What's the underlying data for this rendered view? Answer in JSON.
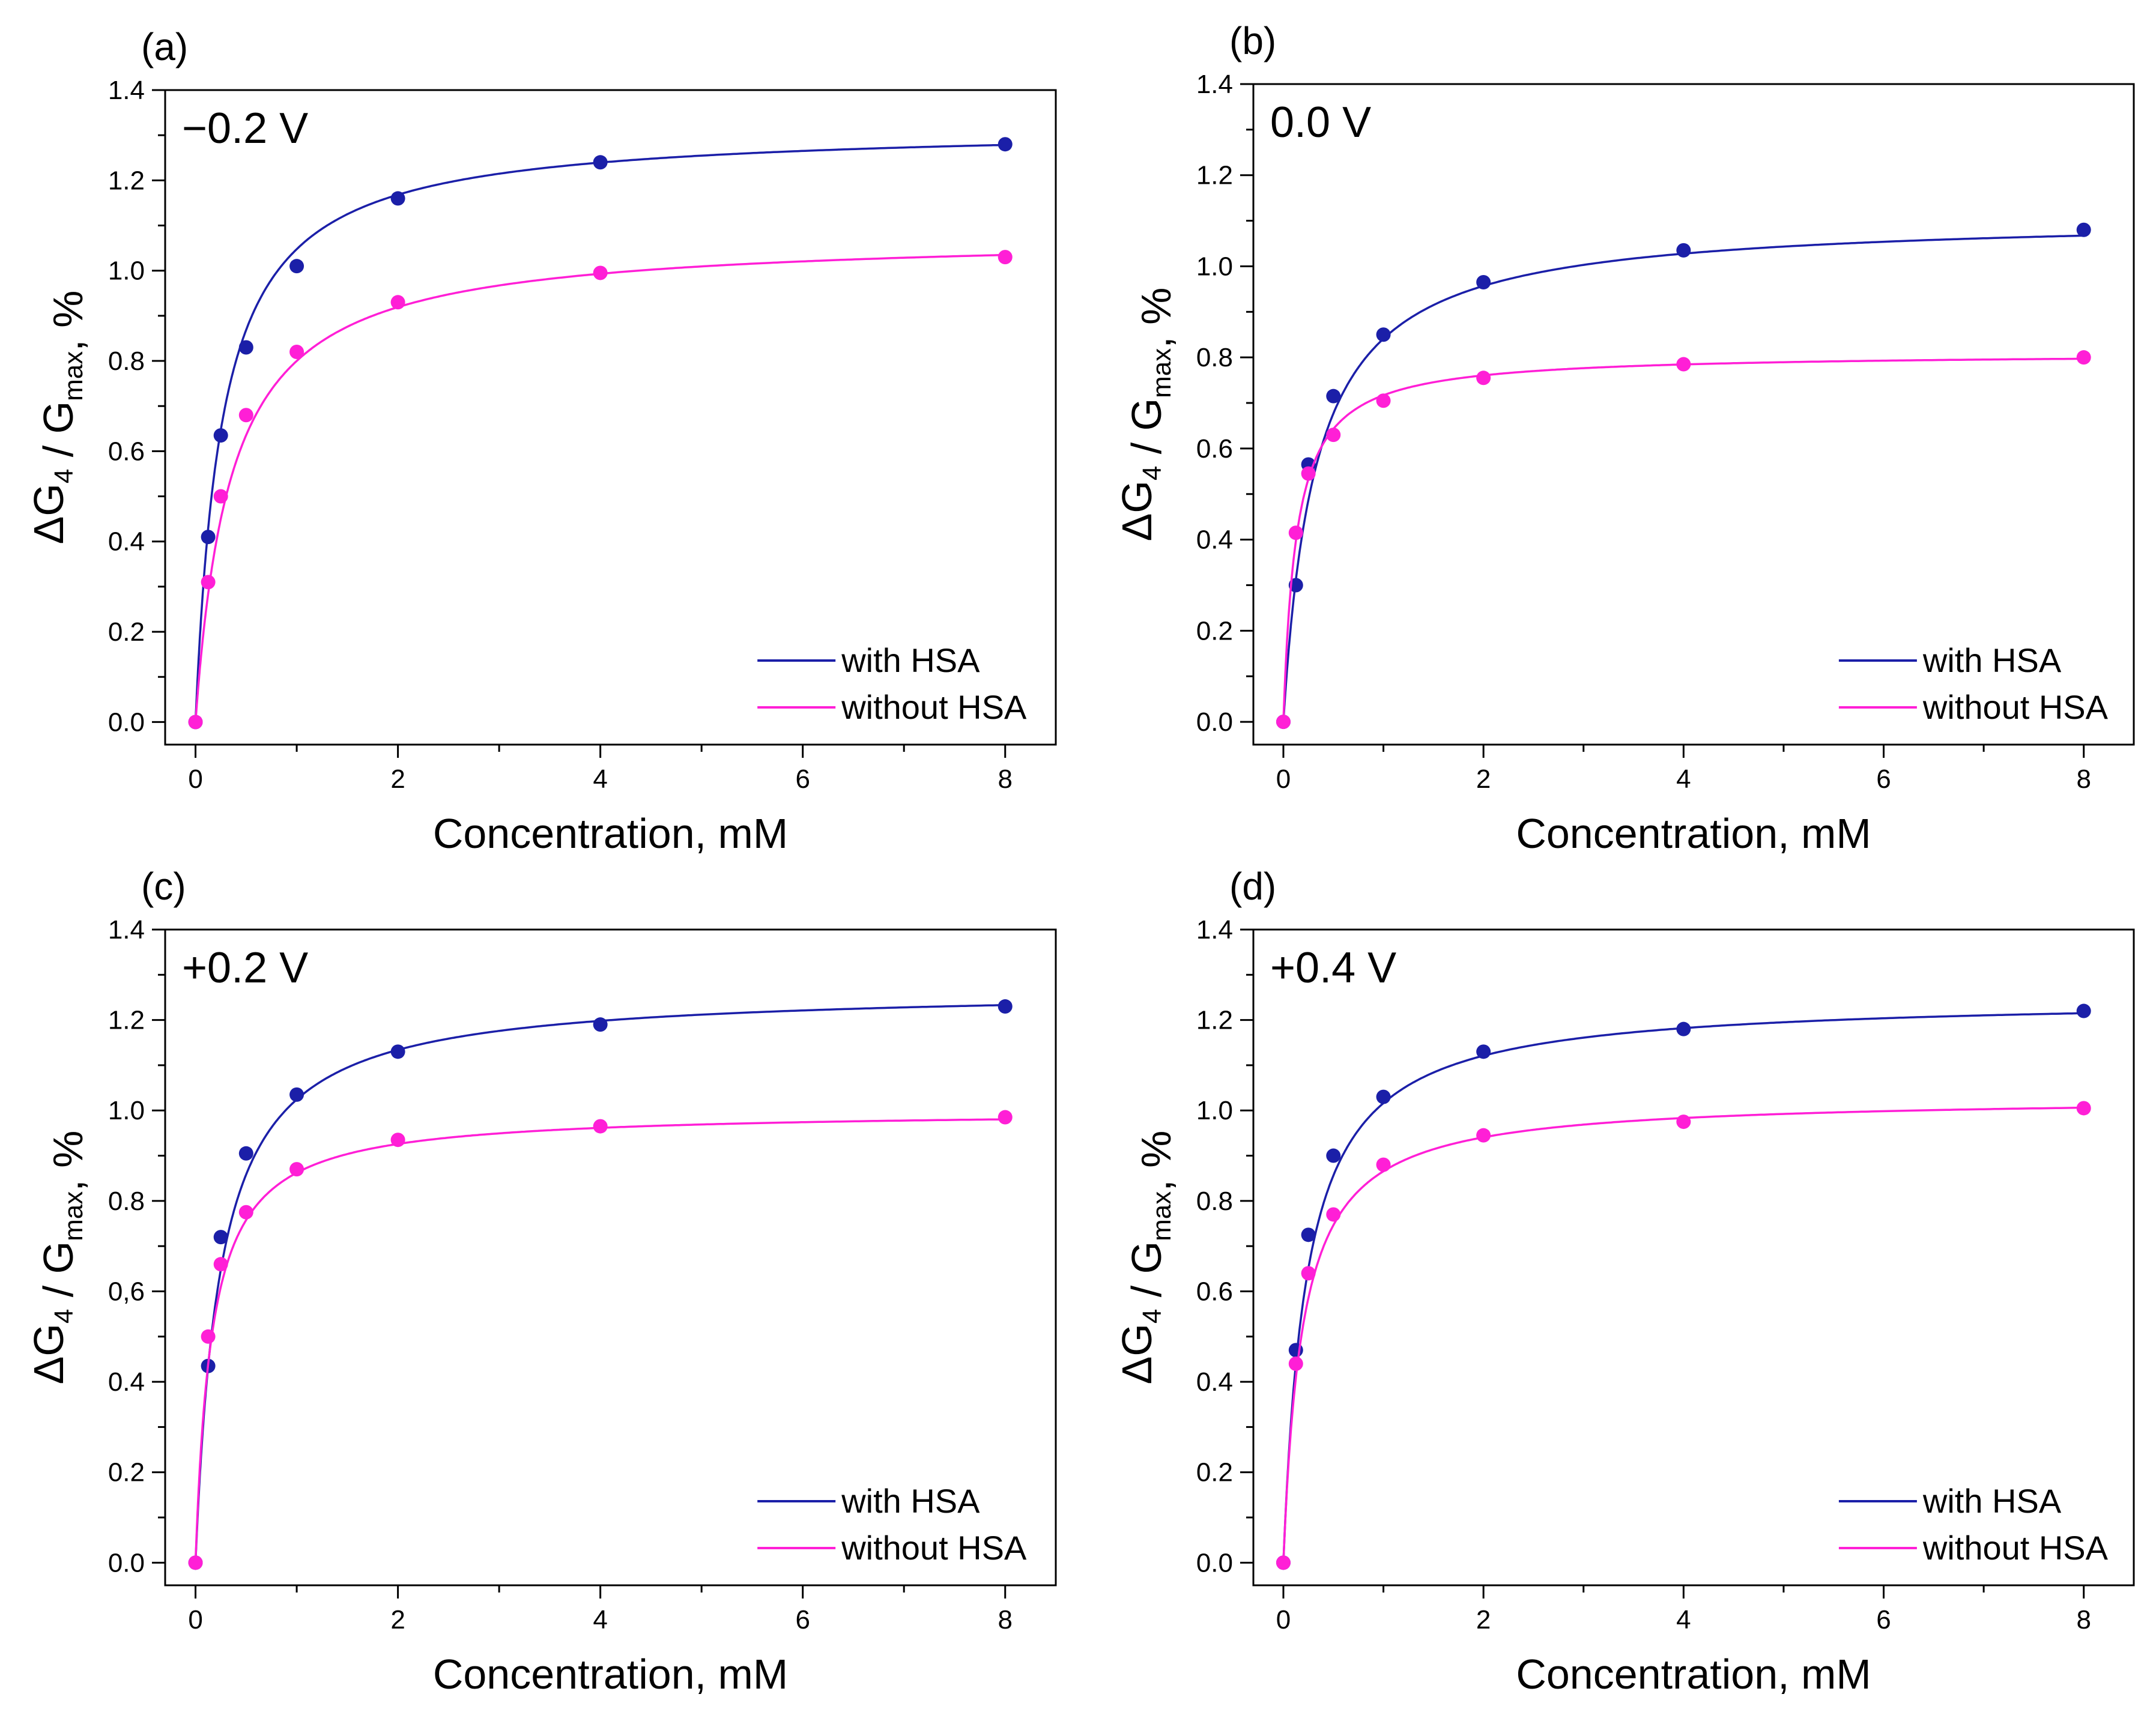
{
  "colors": {
    "with_hsa": "#1b1fa8",
    "without_hsa": "#ff1fd6",
    "axis": "#000000"
  },
  "chart_data": [
    {
      "type": "line",
      "panel_label": "(a)",
      "voltage_label": "−0.2 V",
      "xlabel": "Concentration, mM",
      "ylabel": "ΔG4 / Gmax, %",
      "xlim": [
        -0.3,
        8.5
      ],
      "ylim": [
        -0.05,
        1.4
      ],
      "x_ticks": [
        "0",
        "2",
        "4",
        "6",
        "8"
      ],
      "y_ticks": [
        "0.0",
        "0.2",
        "0.4",
        "0.6",
        "0.8",
        "1.0",
        "1.2",
        "1.4"
      ],
      "series": [
        {
          "name": "with HSA",
          "color_key": "with_hsa",
          "fit": [
            1.32,
            0.26
          ],
          "x": [
            0,
            0.125,
            0.25,
            0.5,
            1,
            2,
            4,
            8
          ],
          "y": [
            0.0,
            0.41,
            0.635,
            0.83,
            1.01,
            1.16,
            1.24,
            1.28
          ]
        },
        {
          "name": "without HSA",
          "color_key": "without_hsa",
          "fit": [
            1.08,
            0.35
          ],
          "x": [
            0,
            0.125,
            0.25,
            0.5,
            1,
            2,
            4,
            8
          ],
          "y": [
            0.0,
            0.31,
            0.5,
            0.68,
            0.82,
            0.93,
            0.995,
            1.03
          ]
        }
      ]
    },
    {
      "type": "line",
      "panel_label": "(b)",
      "voltage_label": "0.0 V",
      "xlabel": "Concentration, mM",
      "ylabel": "ΔG4 / Gmax, %",
      "xlim": [
        -0.3,
        8.5
      ],
      "ylim": [
        -0.05,
        1.4
      ],
      "x_ticks": [
        "0",
        "2",
        "4",
        "6",
        "8"
      ],
      "y_ticks": [
        "0.0",
        "0.2",
        "0.4",
        "0.6",
        "0.8",
        "1.0",
        "1.2",
        "1.4"
      ],
      "series": [
        {
          "name": "with HSA",
          "color_key": "with_hsa",
          "fit": [
            1.11,
            0.32
          ],
          "x": [
            0,
            0.125,
            0.25,
            0.5,
            1,
            2,
            4,
            8
          ],
          "y": [
            0.0,
            0.3,
            0.565,
            0.715,
            0.85,
            0.965,
            1.035,
            1.08
          ]
        },
        {
          "name": "without HSA",
          "color_key": "without_hsa",
          "fit": [
            0.81,
            0.13
          ],
          "x": [
            0,
            0.125,
            0.25,
            0.5,
            1,
            2,
            4,
            8
          ],
          "y": [
            0.0,
            0.415,
            0.545,
            0.63,
            0.705,
            0.755,
            0.785,
            0.8
          ]
        }
      ]
    },
    {
      "type": "line",
      "panel_label": "(c)",
      "voltage_label": "+0.2 V",
      "xlabel": "Concentration, mM",
      "ylabel": "ΔG4 / Gmax, %",
      "xlim": [
        -0.3,
        8.5
      ],
      "ylim": [
        -0.05,
        1.4
      ],
      "x_ticks": [
        "0",
        "2",
        "4",
        "6",
        "8"
      ],
      "y_ticks": [
        "0.0",
        "0.2",
        "0.4",
        "0,6",
        "0.8",
        "1.0",
        "1.2",
        "1.4"
      ],
      "series": [
        {
          "name": "with HSA",
          "color_key": "with_hsa",
          "fit": [
            1.27,
            0.24
          ],
          "x": [
            0,
            0.125,
            0.25,
            0.5,
            1,
            2,
            4,
            8
          ],
          "y": [
            0.0,
            0.435,
            0.72,
            0.905,
            1.035,
            1.13,
            1.19,
            1.23
          ]
        },
        {
          "name": "without HSA",
          "color_key": "without_hsa",
          "fit": [
            1.0,
            0.16
          ],
          "x": [
            0,
            0.125,
            0.25,
            0.5,
            1,
            2,
            4,
            8
          ],
          "y": [
            0.0,
            0.5,
            0.66,
            0.775,
            0.87,
            0.935,
            0.965,
            0.985
          ]
        }
      ]
    },
    {
      "type": "line",
      "panel_label": "(d)",
      "voltage_label": "+0.4 V",
      "xlabel": "Concentration, mM",
      "ylabel": "ΔG4 / Gmax, %",
      "xlim": [
        -0.3,
        8.5
      ],
      "ylim": [
        -0.05,
        1.4
      ],
      "x_ticks": [
        "0",
        "2",
        "4",
        "6",
        "8"
      ],
      "y_ticks": [
        "0.0",
        "0.2",
        "0.4",
        "0.6",
        "0.8",
        "1.0",
        "1.2",
        "1.4"
      ],
      "series": [
        {
          "name": "with HSA",
          "color_key": "with_hsa",
          "fit": [
            1.25,
            0.23
          ],
          "x": [
            0,
            0.125,
            0.25,
            0.5,
            1,
            2,
            4,
            8
          ],
          "y": [
            0.0,
            0.47,
            0.725,
            0.9,
            1.03,
            1.13,
            1.18,
            1.22
          ]
        },
        {
          "name": "without HSA",
          "color_key": "without_hsa",
          "fit": [
            1.03,
            0.19
          ],
          "x": [
            0,
            0.125,
            0.25,
            0.5,
            1,
            2,
            4,
            8
          ],
          "y": [
            0.0,
            0.44,
            0.64,
            0.77,
            0.88,
            0.945,
            0.975,
            1.005
          ]
        }
      ]
    }
  ]
}
